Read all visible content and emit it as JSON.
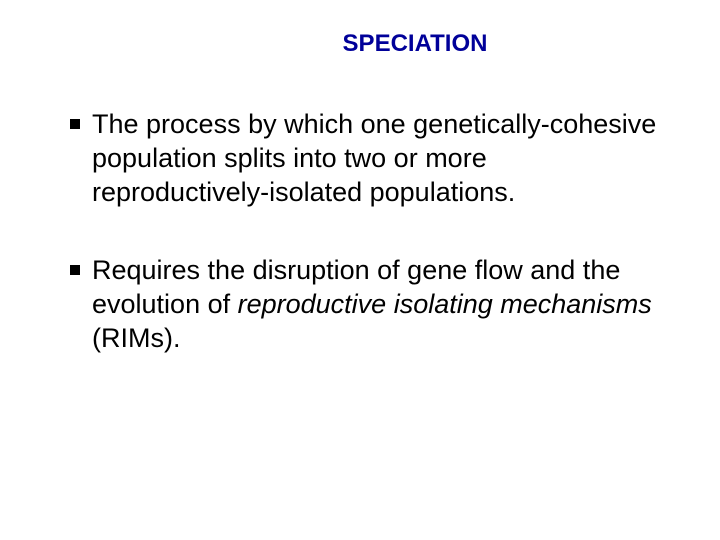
{
  "slide": {
    "title": "SPECIATION",
    "title_color": "#000099",
    "title_fontsize": 24,
    "title_fontweight": "bold",
    "body_fontsize": 27,
    "body_color": "#000000",
    "background_color": "#ffffff",
    "bullet_shape": "square",
    "bullet_color": "#000000",
    "bullet_size": 10,
    "bullets": [
      {
        "segments": [
          {
            "text": "The process by which one genetically-cohesive population splits into two or more reproductively-isolated populations.",
            "italic": false
          }
        ]
      },
      {
        "segments": [
          {
            "text": "Requires the disruption of gene flow and the evolution of ",
            "italic": false
          },
          {
            "text": "reproductive isolating mechanisms",
            "italic": true
          },
          {
            "text": " (RIMs).",
            "italic": false
          }
        ]
      }
    ]
  }
}
